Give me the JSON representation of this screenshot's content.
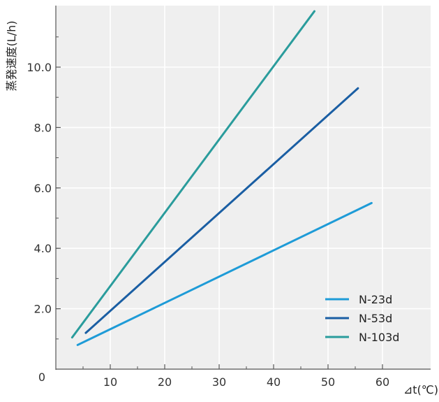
{
  "chart_data": {
    "type": "line",
    "title": "",
    "xlabel": "⊿t(℃)",
    "ylabel": "蒸発速度(L/h)",
    "origin_label": "0",
    "xlim": [
      0,
      60
    ],
    "ylim": [
      0,
      12
    ],
    "x_ticks": [
      10,
      20,
      30,
      40,
      50,
      60
    ],
    "x_tick_labels": [
      "10",
      "20",
      "30",
      "40",
      "50",
      "60"
    ],
    "y_ticks": [
      2,
      4,
      6,
      8,
      10
    ],
    "y_tick_labels": [
      "2.0",
      "4.0",
      "6.0",
      "8.0",
      "10.0"
    ],
    "grid": true,
    "legend_position": "bottom-right",
    "series": [
      {
        "name": "N-23d",
        "color": "#1e9bd7",
        "x": [
          4,
          58
        ],
        "y": [
          0.8,
          5.5
        ]
      },
      {
        "name": "N-53d",
        "color": "#1a5ea3",
        "x": [
          5.5,
          55.5
        ],
        "y": [
          1.2,
          9.3
        ]
      },
      {
        "name": "N-103d",
        "color": "#2a9c9c",
        "x": [
          3,
          47.5
        ],
        "y": [
          1.05,
          11.85
        ]
      }
    ]
  }
}
